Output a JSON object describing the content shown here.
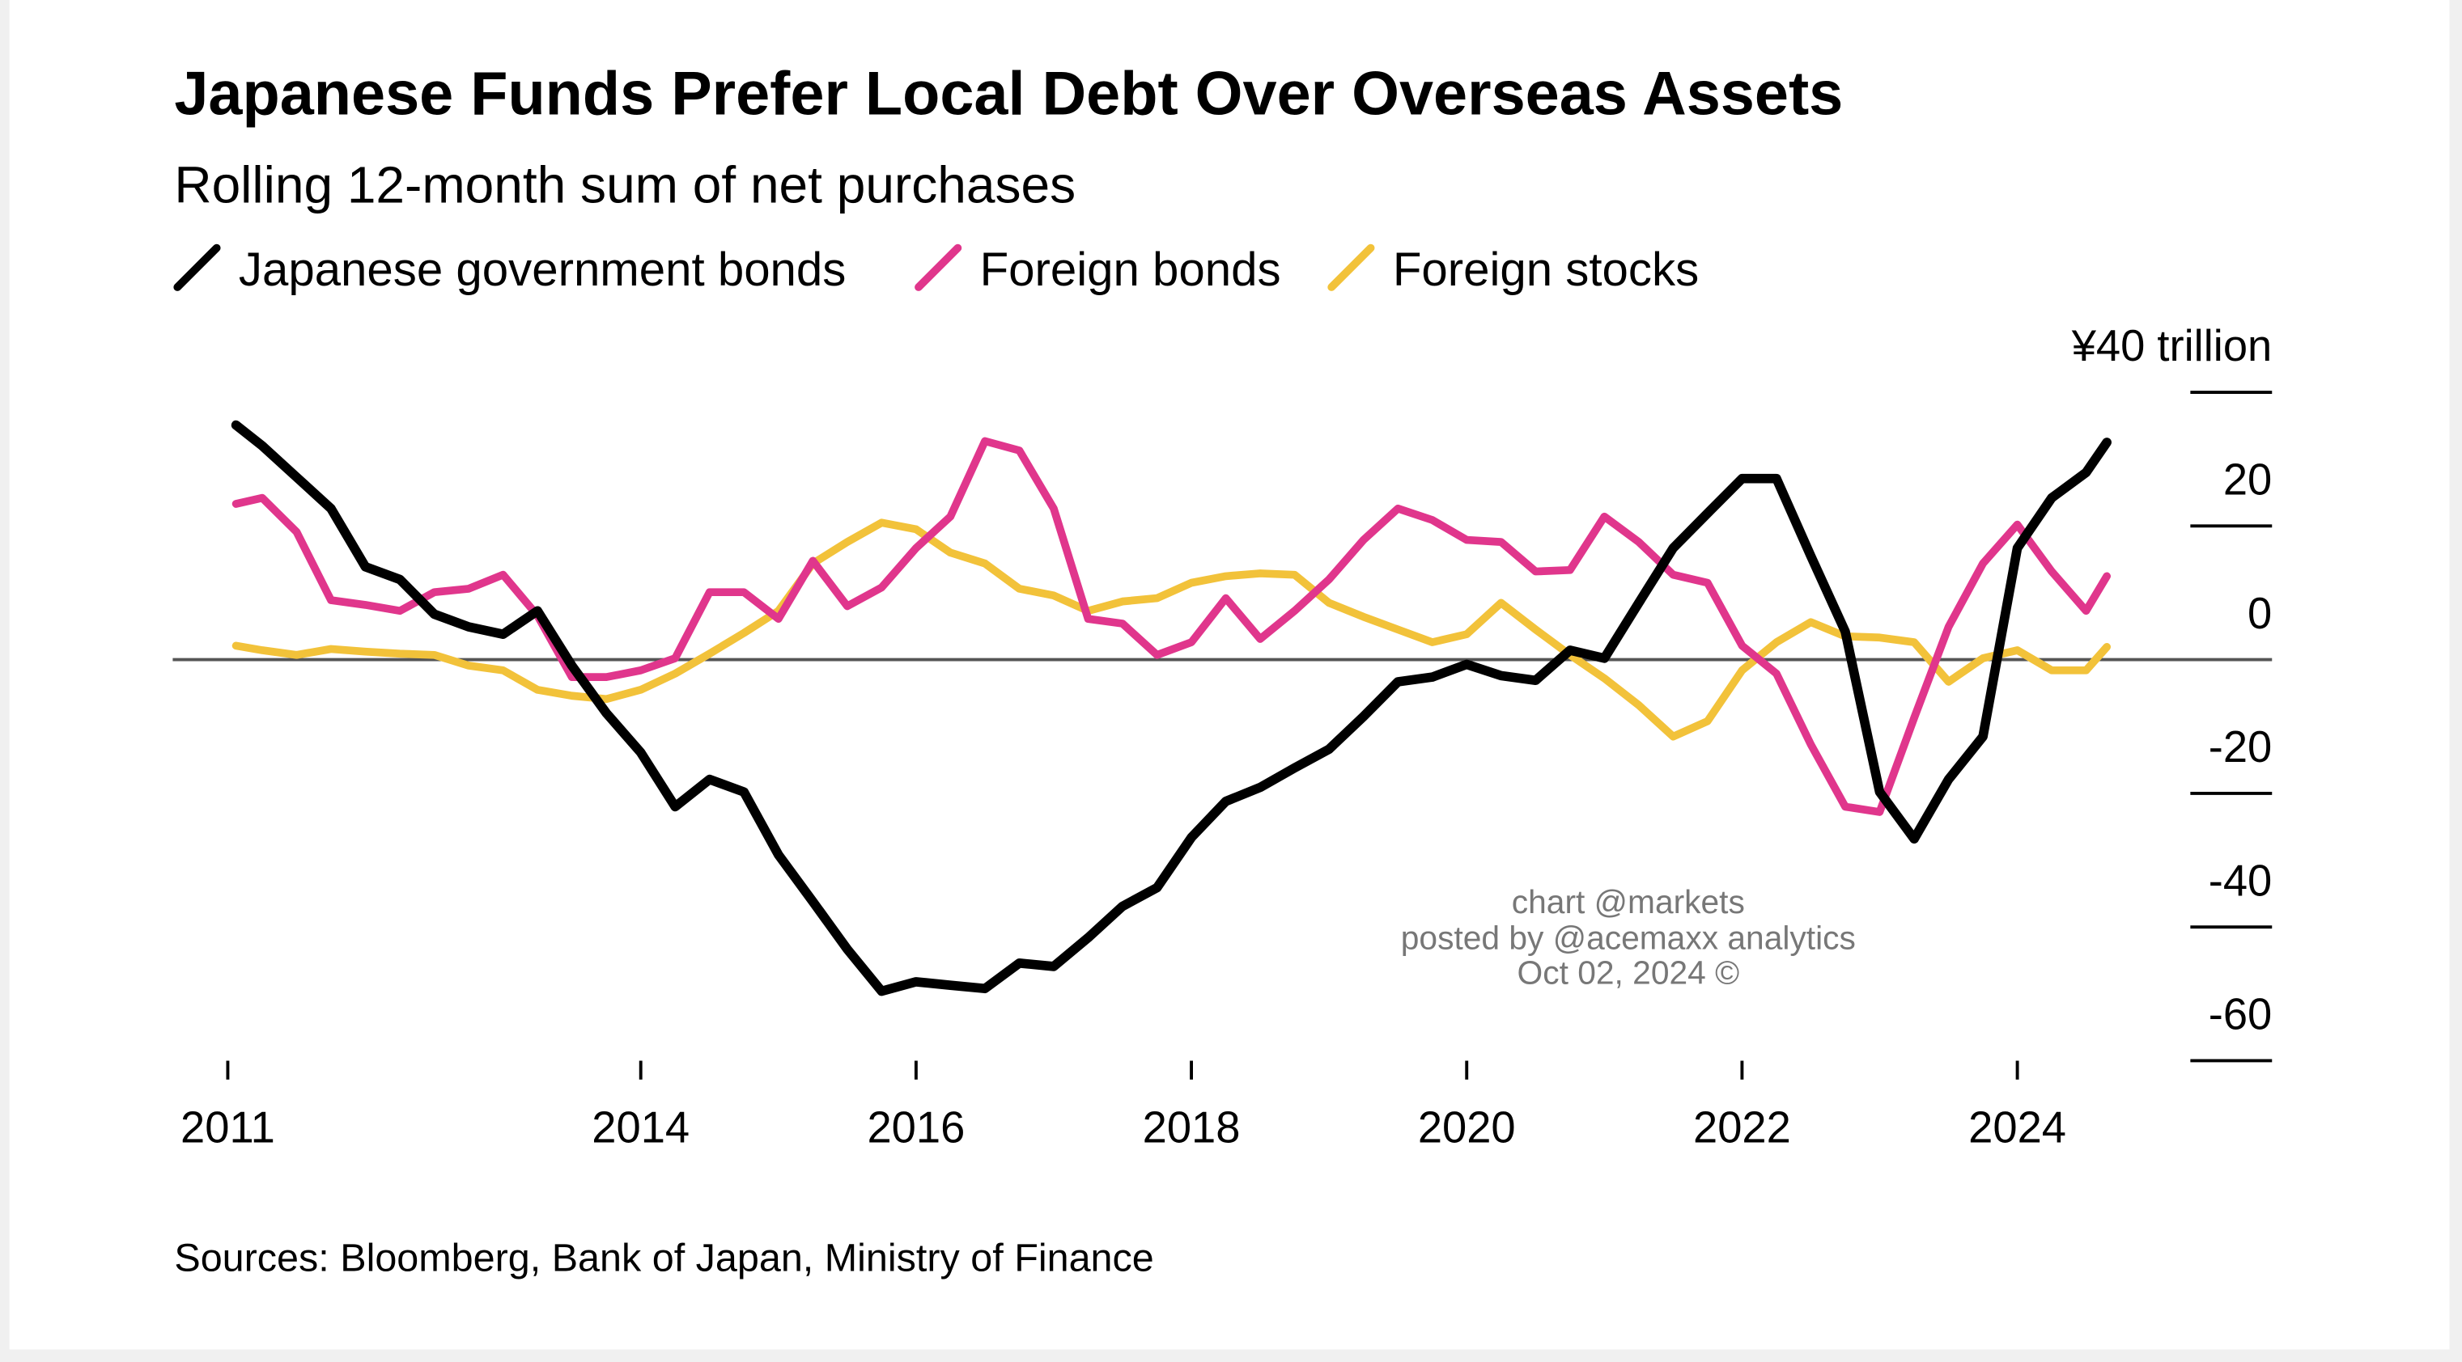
{
  "chart_data": {
    "type": "line",
    "title": "Japanese Funds Prefer Local Debt Over Overseas Assets",
    "subtitle": "Rolling 12-month sum of net purchases",
    "source": "Sources: Bloomberg, Bank of Japan, Ministry of Finance",
    "annotations": [
      "chart @markets",
      "posted by @acemaxx analytics",
      "Oct 02, 2024 ©"
    ],
    "x": [
      2011.06,
      2011.25,
      2011.5,
      2011.75,
      2012,
      2012.25,
      2012.5,
      2012.75,
      2013,
      2013.25,
      2013.5,
      2013.75,
      2014,
      2014.25,
      2014.5,
      2014.75,
      2015,
      2015.25,
      2015.5,
      2015.75,
      2016,
      2016.25,
      2016.5,
      2016.75,
      2017,
      2017.25,
      2017.5,
      2017.75,
      2018,
      2018.25,
      2018.5,
      2018.75,
      2019,
      2019.25,
      2019.5,
      2019.75,
      2020,
      2020.25,
      2020.5,
      2020.75,
      2021,
      2021.25,
      2021.5,
      2021.75,
      2022,
      2022.25,
      2022.5,
      2022.75,
      2023,
      2023.25,
      2023.5,
      2023.75,
      2024,
      2024.25,
      2024.5,
      2024.65
    ],
    "series": [
      {
        "name": "Japanese government bonds",
        "color": "#000000",
        "values": [
          35.1,
          32,
          27.3,
          22.6,
          13.9,
          12,
          6.8,
          4.9,
          3.8,
          7.3,
          -0.9,
          -8,
          -13.9,
          -22,
          -17.9,
          -19.8,
          -29.2,
          -36.2,
          -43.3,
          -49.6,
          -48.2,
          -48.7,
          -49.2,
          -45.4,
          -45.9,
          -41.6,
          -36.9,
          -34.1,
          -26.6,
          -21.2,
          -19.1,
          -16.2,
          -13.4,
          -8.5,
          -3.3,
          -2.6,
          -0.7,
          -2.4,
          -3.1,
          1.4,
          0.2,
          8.5,
          16.7,
          21.9,
          27.1,
          27.1,
          15.5,
          4.2,
          -19.8,
          -26.8,
          -17.9,
          -11.5,
          16.7,
          24.2,
          28,
          32.5
        ]
      },
      {
        "name": "Foreign bonds",
        "color": "#e0368c",
        "values": [
          23.3,
          24.2,
          19.1,
          8.9,
          8.2,
          7.3,
          10.1,
          10.6,
          12.7,
          6.6,
          -2.6,
          -2.6,
          -1.6,
          0.2,
          10.1,
          10.1,
          6.1,
          14.8,
          8,
          10.8,
          16.7,
          21.4,
          32.7,
          31.3,
          22.6,
          6.1,
          5.4,
          0.7,
          2.6,
          9.2,
          3.1,
          7.3,
          12,
          17.9,
          22.6,
          20.9,
          17.9,
          17.6,
          13.2,
          13.4,
          21.4,
          17.6,
          12.7,
          11.5,
          2.1,
          -2.1,
          -12.7,
          -22,
          -22.8,
          -8.7,
          4.9,
          14.4,
          20.2,
          13.2,
          7.3,
          12.5
        ]
      },
      {
        "name": "Foreign stocks",
        "color": "#f2c23a",
        "values": [
          2.1,
          1.4,
          0.7,
          1.6,
          1.2,
          0.9,
          0.7,
          -0.9,
          -1.6,
          -4.5,
          -5.4,
          -5.9,
          -4.5,
          -2.1,
          0.9,
          4,
          7.3,
          14.4,
          17.6,
          20.5,
          19.5,
          16,
          14.4,
          10.6,
          9.6,
          7.3,
          8.7,
          9.2,
          11.5,
          12.5,
          12.9,
          12.7,
          8.5,
          6.4,
          4.5,
          2.6,
          3.8,
          8.5,
          4.5,
          0.7,
          -2.8,
          -6.8,
          -11.5,
          -9.2,
          -1.6,
          2.6,
          5.6,
          3.5,
          3.3,
          2.6,
          -3.3,
          0.2,
          1.4,
          -1.6,
          -1.6,
          1.9
        ]
      }
    ],
    "xlim": [
      2010.6,
      2025.85
    ],
    "xticks": [
      2011,
      2014,
      2016,
      2018,
      2020,
      2022,
      2024
    ],
    "ylim": [
      -60,
      40
    ],
    "yticks": [
      {
        "value": 40,
        "label": "¥40 trillion"
      },
      20,
      0,
      -20,
      -40,
      -60
    ]
  }
}
